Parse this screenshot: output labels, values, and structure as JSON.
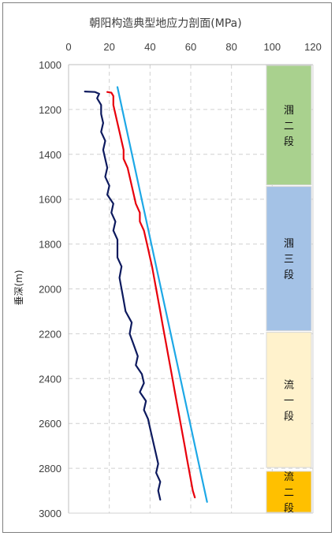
{
  "chart_data": {
    "type": "line",
    "title": "朝阳构造典型地应力剖面(MPa)",
    "xlabel": "",
    "ylabel": "垂深(m)",
    "xlim": [
      0,
      120
    ],
    "ylim": [
      1000,
      3000
    ],
    "x_ticks": [
      "0",
      "20",
      "40",
      "60",
      "80",
      "100",
      "120"
    ],
    "y_ticks": [
      "1000",
      "1200",
      "1400",
      "1600",
      "1800",
      "2000",
      "2200",
      "2400",
      "2600",
      "2800",
      "3000"
    ],
    "grid": true,
    "y_inverted": true,
    "series": [
      {
        "color": "#0d1a5e",
        "points": [
          [
            8,
            1120
          ],
          [
            13,
            1122
          ],
          [
            15,
            1130
          ],
          [
            14,
            1150
          ],
          [
            16,
            1180
          ],
          [
            16,
            1220
          ],
          [
            17,
            1260
          ],
          [
            16,
            1300
          ],
          [
            18,
            1340
          ],
          [
            17,
            1380
          ],
          [
            18,
            1420
          ],
          [
            19,
            1460
          ],
          [
            18,
            1500
          ],
          [
            20,
            1540
          ],
          [
            19,
            1580
          ],
          [
            22,
            1620
          ],
          [
            21,
            1660
          ],
          [
            23,
            1700
          ],
          [
            22,
            1740
          ],
          [
            24,
            1780
          ],
          [
            24,
            1820
          ],
          [
            24,
            1860
          ],
          [
            26,
            1900
          ],
          [
            25,
            1950
          ],
          [
            26,
            2000
          ],
          [
            27,
            2050
          ],
          [
            28,
            2100
          ],
          [
            31,
            2150
          ],
          [
            30,
            2200
          ],
          [
            32,
            2250
          ],
          [
            34,
            2300
          ],
          [
            33,
            2340
          ],
          [
            36,
            2380
          ],
          [
            37,
            2420
          ],
          [
            35,
            2460
          ],
          [
            38,
            2500
          ],
          [
            37,
            2540
          ],
          [
            39,
            2580
          ],
          [
            40,
            2620
          ],
          [
            41,
            2660
          ],
          [
            42,
            2700
          ],
          [
            43,
            2740
          ],
          [
            44,
            2780
          ],
          [
            43,
            2820
          ],
          [
            45,
            2860
          ],
          [
            44,
            2900
          ],
          [
            45,
            2940
          ]
        ]
      },
      {
        "color": "#e8000b",
        "points": [
          [
            19,
            1122
          ],
          [
            21,
            1125
          ],
          [
            22,
            1140
          ],
          [
            22,
            1180
          ],
          [
            23,
            1220
          ],
          [
            24,
            1260
          ],
          [
            25,
            1300
          ],
          [
            26,
            1340
          ],
          [
            27,
            1380
          ],
          [
            27,
            1420
          ],
          [
            29,
            1460
          ],
          [
            30,
            1500
          ],
          [
            31,
            1540
          ],
          [
            32,
            1580
          ],
          [
            33,
            1620
          ],
          [
            35,
            1660
          ],
          [
            35,
            1700
          ],
          [
            37,
            1740
          ],
          [
            38,
            1780
          ],
          [
            39,
            1820
          ],
          [
            40,
            1860
          ],
          [
            41,
            1900
          ],
          [
            42,
            1950
          ],
          [
            43,
            2000
          ],
          [
            44,
            2050
          ],
          [
            45,
            2100
          ],
          [
            46,
            2150
          ],
          [
            47,
            2200
          ],
          [
            48,
            2250
          ],
          [
            49,
            2300
          ],
          [
            50,
            2350
          ],
          [
            51,
            2400
          ],
          [
            52,
            2450
          ],
          [
            53,
            2500
          ],
          [
            54,
            2550
          ],
          [
            55,
            2600
          ],
          [
            56,
            2650
          ],
          [
            57,
            2700
          ],
          [
            58,
            2750
          ],
          [
            59,
            2800
          ],
          [
            60,
            2850
          ],
          [
            61,
            2900
          ],
          [
            62,
            2930
          ]
        ]
      },
      {
        "color": "#1da8e6",
        "points": [
          [
            24,
            1100
          ],
          [
            68,
            2950
          ]
        ]
      }
    ],
    "zones": [
      {
        "label": "涠二段",
        "from": 1000,
        "to": 1540,
        "color": "#a9d18e"
      },
      {
        "label": "涠三段",
        "from": 1540,
        "to": 2190,
        "color": "#a4c2e6"
      },
      {
        "label": "流一段",
        "from": 2190,
        "to": 2800,
        "color": "#fff2cc"
      },
      {
        "label": "流二段",
        "from": 2810,
        "to": 3000,
        "color": "#ffc000"
      }
    ]
  }
}
